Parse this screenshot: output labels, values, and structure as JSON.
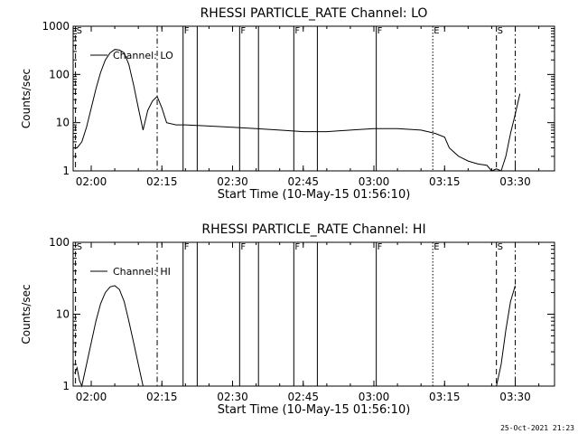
{
  "footer": "25-Oct-2021 21:23",
  "chart_data": [
    {
      "type": "line",
      "title": "RHESSI PARTICLE_RATE Channel: LO",
      "xlabel": "Start Time (10-May-15 01:56:10)",
      "ylabel": "Counts/sec",
      "yscale": "log",
      "xlim": [
        "01:56:10",
        "03:38:20"
      ],
      "ylim": [
        1,
        1000
      ],
      "x_ticks": [
        "02:00",
        "02:15",
        "02:30",
        "02:45",
        "03:00",
        "03:15",
        "03:30"
      ],
      "y_ticks": [
        "1",
        "10",
        "100",
        "1000"
      ],
      "legend": {
        "entries": [
          "Channel: LO"
        ],
        "placement": "top-left"
      },
      "series": [
        {
          "name": "Channel: LO",
          "x": [
            "01:56:10",
            "01:57:00",
            "01:58:00",
            "01:59:00",
            "02:00:00",
            "02:01:00",
            "02:02:00",
            "02:03:00",
            "02:04:00",
            "02:05:00",
            "02:06:00",
            "02:07:00",
            "02:08:00",
            "02:09:00",
            "02:10:00",
            "02:11:00",
            "02:12:00",
            "02:13:00",
            "02:14:00",
            "02:15:00",
            "02:16:00",
            "02:18:00",
            "02:20:00",
            "02:25:00",
            "02:30:00",
            "02:35:00",
            "02:40:00",
            "02:45:00",
            "02:50:00",
            "02:55:00",
            "03:00:00",
            "03:05:00",
            "03:10:00",
            "03:13:00",
            "03:15:00",
            "03:16:00",
            "03:18:00",
            "03:20:00",
            "03:22:00",
            "03:24:00",
            "03:25:00",
            "03:26:00",
            "03:27:00",
            "03:28:00",
            "03:29:00",
            "03:30:00",
            "03:31:00"
          ],
          "values": [
            3,
            3,
            4,
            8,
            20,
            50,
            110,
            200,
            280,
            330,
            320,
            280,
            160,
            60,
            20,
            7,
            18,
            28,
            35,
            20,
            10,
            9,
            9,
            8.5,
            8,
            7.5,
            7,
            6.5,
            6.5,
            7,
            7.5,
            7.5,
            7,
            6,
            5,
            3,
            2,
            1.6,
            1.4,
            1.3,
            1,
            1.1,
            1,
            2,
            6,
            15,
            40
          ]
        }
      ],
      "events": [
        {
          "time": "01:56:40",
          "style": "dashed",
          "label": "S"
        },
        {
          "time": "02:14:00",
          "style": "dashdot",
          "label": ""
        },
        {
          "time": "02:19:30",
          "style": "solid",
          "label": "F"
        },
        {
          "time": "02:22:30",
          "style": "solid",
          "label": ""
        },
        {
          "time": "02:31:30",
          "style": "solid",
          "label": "F"
        },
        {
          "time": "02:35:30",
          "style": "solid",
          "label": ""
        },
        {
          "time": "02:43:00",
          "style": "solid",
          "label": "F"
        },
        {
          "time": "02:48:00",
          "style": "solid",
          "label": ""
        },
        {
          "time": "03:00:30",
          "style": "solid",
          "label": "F"
        },
        {
          "time": "03:12:30",
          "style": "dotted",
          "label": "E"
        },
        {
          "time": "03:26:00",
          "style": "dashed",
          "label": "S"
        },
        {
          "time": "03:30:00",
          "style": "dashdot",
          "label": ""
        }
      ]
    },
    {
      "type": "line",
      "title": "RHESSI PARTICLE_RATE Channel: HI",
      "xlabel": "Start Time (10-May-15 01:56:10)",
      "ylabel": "Counts/sec",
      "yscale": "log",
      "xlim": [
        "01:56:10",
        "03:38:20"
      ],
      "ylim": [
        1,
        100
      ],
      "x_ticks": [
        "02:00",
        "02:15",
        "02:30",
        "02:45",
        "03:00",
        "03:15",
        "03:30"
      ],
      "y_ticks": [
        "1",
        "10",
        "100"
      ],
      "legend": {
        "entries": [
          "Channel: HI"
        ],
        "placement": "top-left"
      },
      "series": [
        {
          "name": "Channel: HI",
          "x": [
            "01:56:30",
            "01:57:00",
            "01:57:30",
            "01:58:00",
            "01:59:00",
            "02:00:00",
            "02:01:00",
            "02:02:00",
            "02:03:00",
            "02:04:00",
            "02:05:00",
            "02:06:00",
            "02:07:00",
            "02:08:00",
            "02:09:00",
            "02:10:00",
            "02:11:00"
          ],
          "values": [
            1.5,
            1.8,
            1.2,
            1,
            2,
            4,
            8,
            14,
            20,
            24,
            25,
            22,
            15,
            8,
            4,
            2,
            1
          ],
          "extra": {
            "x": [
              "03:26:00",
              "03:27:00",
              "03:28:00",
              "03:29:00",
              "03:30:00"
            ],
            "values": [
              1,
              2,
              6,
              15,
              25
            ]
          }
        }
      ],
      "events": [
        {
          "time": "01:56:40",
          "style": "dashed",
          "label": "S"
        },
        {
          "time": "02:14:00",
          "style": "dashdot",
          "label": ""
        },
        {
          "time": "02:19:30",
          "style": "solid",
          "label": "F"
        },
        {
          "time": "02:22:30",
          "style": "solid",
          "label": ""
        },
        {
          "time": "02:31:30",
          "style": "solid",
          "label": "F"
        },
        {
          "time": "02:35:30",
          "style": "solid",
          "label": ""
        },
        {
          "time": "02:43:00",
          "style": "solid",
          "label": "F"
        },
        {
          "time": "02:48:00",
          "style": "solid",
          "label": ""
        },
        {
          "time": "03:00:30",
          "style": "solid",
          "label": "F"
        },
        {
          "time": "03:12:30",
          "style": "dotted",
          "label": "E"
        },
        {
          "time": "03:26:00",
          "style": "dashed",
          "label": "S"
        },
        {
          "time": "03:30:00",
          "style": "dashdot",
          "label": ""
        }
      ]
    }
  ]
}
